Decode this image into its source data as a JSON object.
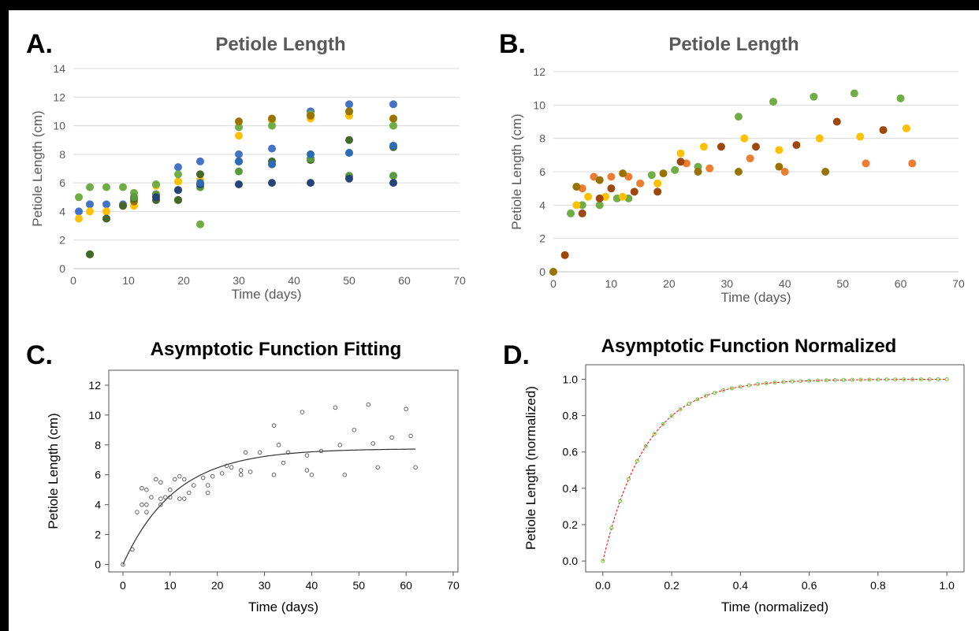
{
  "panels": [
    {
      "letter": "A.",
      "chart_data": {
        "type": "scatter",
        "title": "Petiole Length",
        "xlabel": "Time (days)",
        "ylabel": "Petiole Length (cm)",
        "xlim": [
          0,
          70
        ],
        "ylim": [
          0,
          14
        ],
        "xticks": [
          0,
          10,
          20,
          30,
          40,
          50,
          60,
          70
        ],
        "yticks": [
          0,
          2,
          4,
          6,
          8,
          10,
          12,
          14
        ],
        "grid": true,
        "series": [
          {
            "color": "#4472c4",
            "x": [
              1,
              3,
              6,
              9,
              11,
              15,
              19,
              23,
              30,
              36,
              43,
              50,
              58
            ],
            "y": [
              4,
              4.5,
              4.5,
              4.5,
              5,
              5.2,
              7.1,
              7.5,
              8,
              8.4,
              11,
              11.5,
              11.5
            ]
          },
          {
            "color": "#ffc000",
            "x": [
              1,
              3,
              6,
              9,
              11,
              15,
              19,
              23,
              30,
              36,
              43,
              50,
              58
            ],
            "y": [
              3.5,
              4,
              4,
              4.4,
              4.4,
              5.8,
              6.1,
              6.2,
              9.3,
              10.4,
              10.5,
              10.7,
              10.5
            ]
          },
          {
            "color": "#70ad47",
            "x": [
              1,
              3,
              6,
              9,
              11,
              15,
              19,
              23,
              30,
              36,
              43,
              50,
              58
            ],
            "y": [
              5,
              5.7,
              5.7,
              5.7,
              5.3,
              5.9,
              6.6,
              3.1,
              9.9,
              10,
              10.8,
              11,
              10
            ]
          },
          {
            "color": "#997300",
            "x": [
              3,
              6,
              9,
              11,
              15,
              19,
              23,
              30,
              36,
              43,
              50,
              58
            ],
            "y": [
              1,
              3.5,
              4.4,
              4.7,
              4.8,
              4.8,
              5.7,
              10.3,
              10.5,
              10.7,
              11,
              10.5
            ]
          },
          {
            "color": "#43682b",
            "x": [
              3,
              6,
              9,
              11,
              15,
              19,
              23,
              30,
              36,
              43,
              50,
              58
            ],
            "y": [
              1,
              3.5,
              4.4,
              4.9,
              4.8,
              4.8,
              6.6,
              7.5,
              7.5,
              7.6,
              9,
              8.5
            ]
          },
          {
            "color": "#5b9a3c",
            "x": [
              11,
              15,
              19,
              23,
              30,
              36,
              43,
              50,
              58
            ],
            "y": [
              5,
              5.2,
              5.5,
              5.7,
              6.8,
              7.3,
              7.7,
              6.5,
              6.5
            ]
          },
          {
            "color": "#264478",
            "x": [
              15,
              19,
              23,
              30,
              36,
              43,
              50,
              58
            ],
            "y": [
              5,
              5.5,
              5.9,
              5.9,
              6,
              6,
              6.3,
              6
            ]
          },
          {
            "color": "#2e6bb5",
            "x": [
              23,
              30,
              36,
              43,
              50,
              58
            ],
            "y": [
              6,
              7.5,
              7.3,
              8,
              8.1,
              8.6
            ]
          }
        ]
      }
    },
    {
      "letter": "B.",
      "chart_data": {
        "type": "scatter",
        "title": "Petiole Length",
        "xlabel": "Time (days)",
        "ylabel": "Petiole Length (cm)",
        "xlim": [
          0,
          70
        ],
        "ylim": [
          0,
          12
        ],
        "xticks": [
          0,
          10,
          20,
          30,
          40,
          50,
          60,
          70
        ],
        "yticks": [
          0,
          2,
          4,
          6,
          8,
          10,
          12
        ],
        "grid": true,
        "series": [
          {
            "color": "#70ad47",
            "x": [
              3,
              5,
              8,
              11,
              13,
              17,
              21,
              25,
              32,
              38,
              45,
              52,
              60
            ],
            "y": [
              3.5,
              4,
              4,
              4.4,
              4.4,
              5.8,
              6.1,
              6.3,
              9.3,
              10.2,
              10.5,
              10.7,
              10.4
            ]
          },
          {
            "color": "#ffc000",
            "x": [
              4,
              6,
              9,
              12,
              18,
              22,
              26,
              33,
              39,
              46,
              53,
              61
            ],
            "y": [
              4,
              4.5,
              4.5,
              4.5,
              5.3,
              7.1,
              7.5,
              8,
              7.3,
              8,
              8.1,
              8.6
            ]
          },
          {
            "color": "#ed7d31",
            "x": [
              5,
              7,
              10,
              13,
              15,
              23,
              27,
              34,
              40,
              54,
              62
            ],
            "y": [
              5,
              5.7,
              5.7,
              5.7,
              5.3,
              6.5,
              6.2,
              6.8,
              6,
              6.5,
              6.5
            ]
          },
          {
            "color": "#9e480e",
            "x": [
              2,
              5,
              8,
              10,
              14,
              18,
              22,
              29,
              35,
              42,
              49,
              57
            ],
            "y": [
              1,
              3.5,
              4.4,
              5,
              4.8,
              4.8,
              6.6,
              7.5,
              7.5,
              7.6,
              9,
              8.5
            ]
          },
          {
            "color": "#997300",
            "x": [
              0,
              4,
              8,
              12,
              19,
              25,
              32,
              39,
              47
            ],
            "y": [
              0,
              5.1,
              5.5,
              5.9,
              5.9,
              6,
              6,
              6.3,
              6
            ]
          }
        ]
      }
    },
    {
      "letter": "C.",
      "chart_data": {
        "type": "scatter",
        "title": "Asymptotic Function Fitting",
        "xlabel": "Time (days)",
        "ylabel": "Petiole Length (cm)",
        "xlim": [
          -3,
          71
        ],
        "ylim": [
          -0.5,
          13
        ],
        "xticks": [
          0,
          10,
          20,
          30,
          40,
          50,
          60,
          70
        ],
        "yticks": [
          0,
          2,
          4,
          6,
          8,
          10,
          12
        ],
        "grid": false,
        "points": {
          "x": [
            0,
            2,
            3,
            4,
            4,
            5,
            5,
            5,
            6,
            7,
            8,
            8,
            8,
            9,
            10,
            10,
            11,
            12,
            12,
            13,
            13,
            14,
            15,
            17,
            18,
            18,
            19,
            21,
            22,
            23,
            25,
            25,
            26,
            27,
            29,
            32,
            32,
            33,
            34,
            35,
            38,
            39,
            39,
            40,
            42,
            45,
            46,
            47,
            49,
            52,
            53,
            54,
            57,
            60,
            61,
            62
          ],
          "y": [
            0,
            1,
            3.5,
            4,
            5.1,
            3.5,
            4,
            5,
            4.5,
            5.7,
            4,
            4.4,
            5.5,
            4.5,
            4.5,
            5,
            5.7,
            4.4,
            5.9,
            4.4,
            5.7,
            4.8,
            5.3,
            5.8,
            4.8,
            5.3,
            5.9,
            6.1,
            6.6,
            6.5,
            6,
            6.3,
            7.5,
            6.2,
            7.5,
            6,
            9.3,
            8,
            6.8,
            7.5,
            10.2,
            7.3,
            6.3,
            6,
            7.6,
            10.5,
            8,
            6,
            9,
            10.7,
            8.1,
            6.5,
            8.5,
            10.4,
            8.6,
            6.5
          ]
        },
        "fit": {
          "type": "line",
          "asymptote": 7.75,
          "rate": 0.09,
          "x_range": [
            0,
            62
          ]
        }
      }
    },
    {
      "letter": "D.",
      "chart_data": {
        "type": "line",
        "title": "Asymptotic Function Normalized",
        "xlabel": "Time (normalized)",
        "ylabel": "Petiole Length (normalized)",
        "xlim": [
          -0.05,
          1.05
        ],
        "ylim": [
          -0.06,
          1.08
        ],
        "xticks": [
          0.0,
          0.2,
          0.4,
          0.6,
          0.8,
          1.0
        ],
        "yticks": [
          0.0,
          0.2,
          0.4,
          0.6,
          0.8,
          1.0
        ],
        "xtick_labels": [
          "0.0",
          "0.2",
          "0.4",
          "0.6",
          "0.8",
          "1.0"
        ],
        "ytick_labels": [
          "0.0",
          "0.2",
          "0.4",
          "0.6",
          "0.8",
          "1.0"
        ],
        "grid": false,
        "series": [
          {
            "style": "dashed",
            "color": "#ff0000",
            "rate": 8.0
          },
          {
            "style": "markers",
            "color": "#66cc33",
            "rate": 8.0,
            "n_points": 41
          }
        ]
      }
    }
  ]
}
